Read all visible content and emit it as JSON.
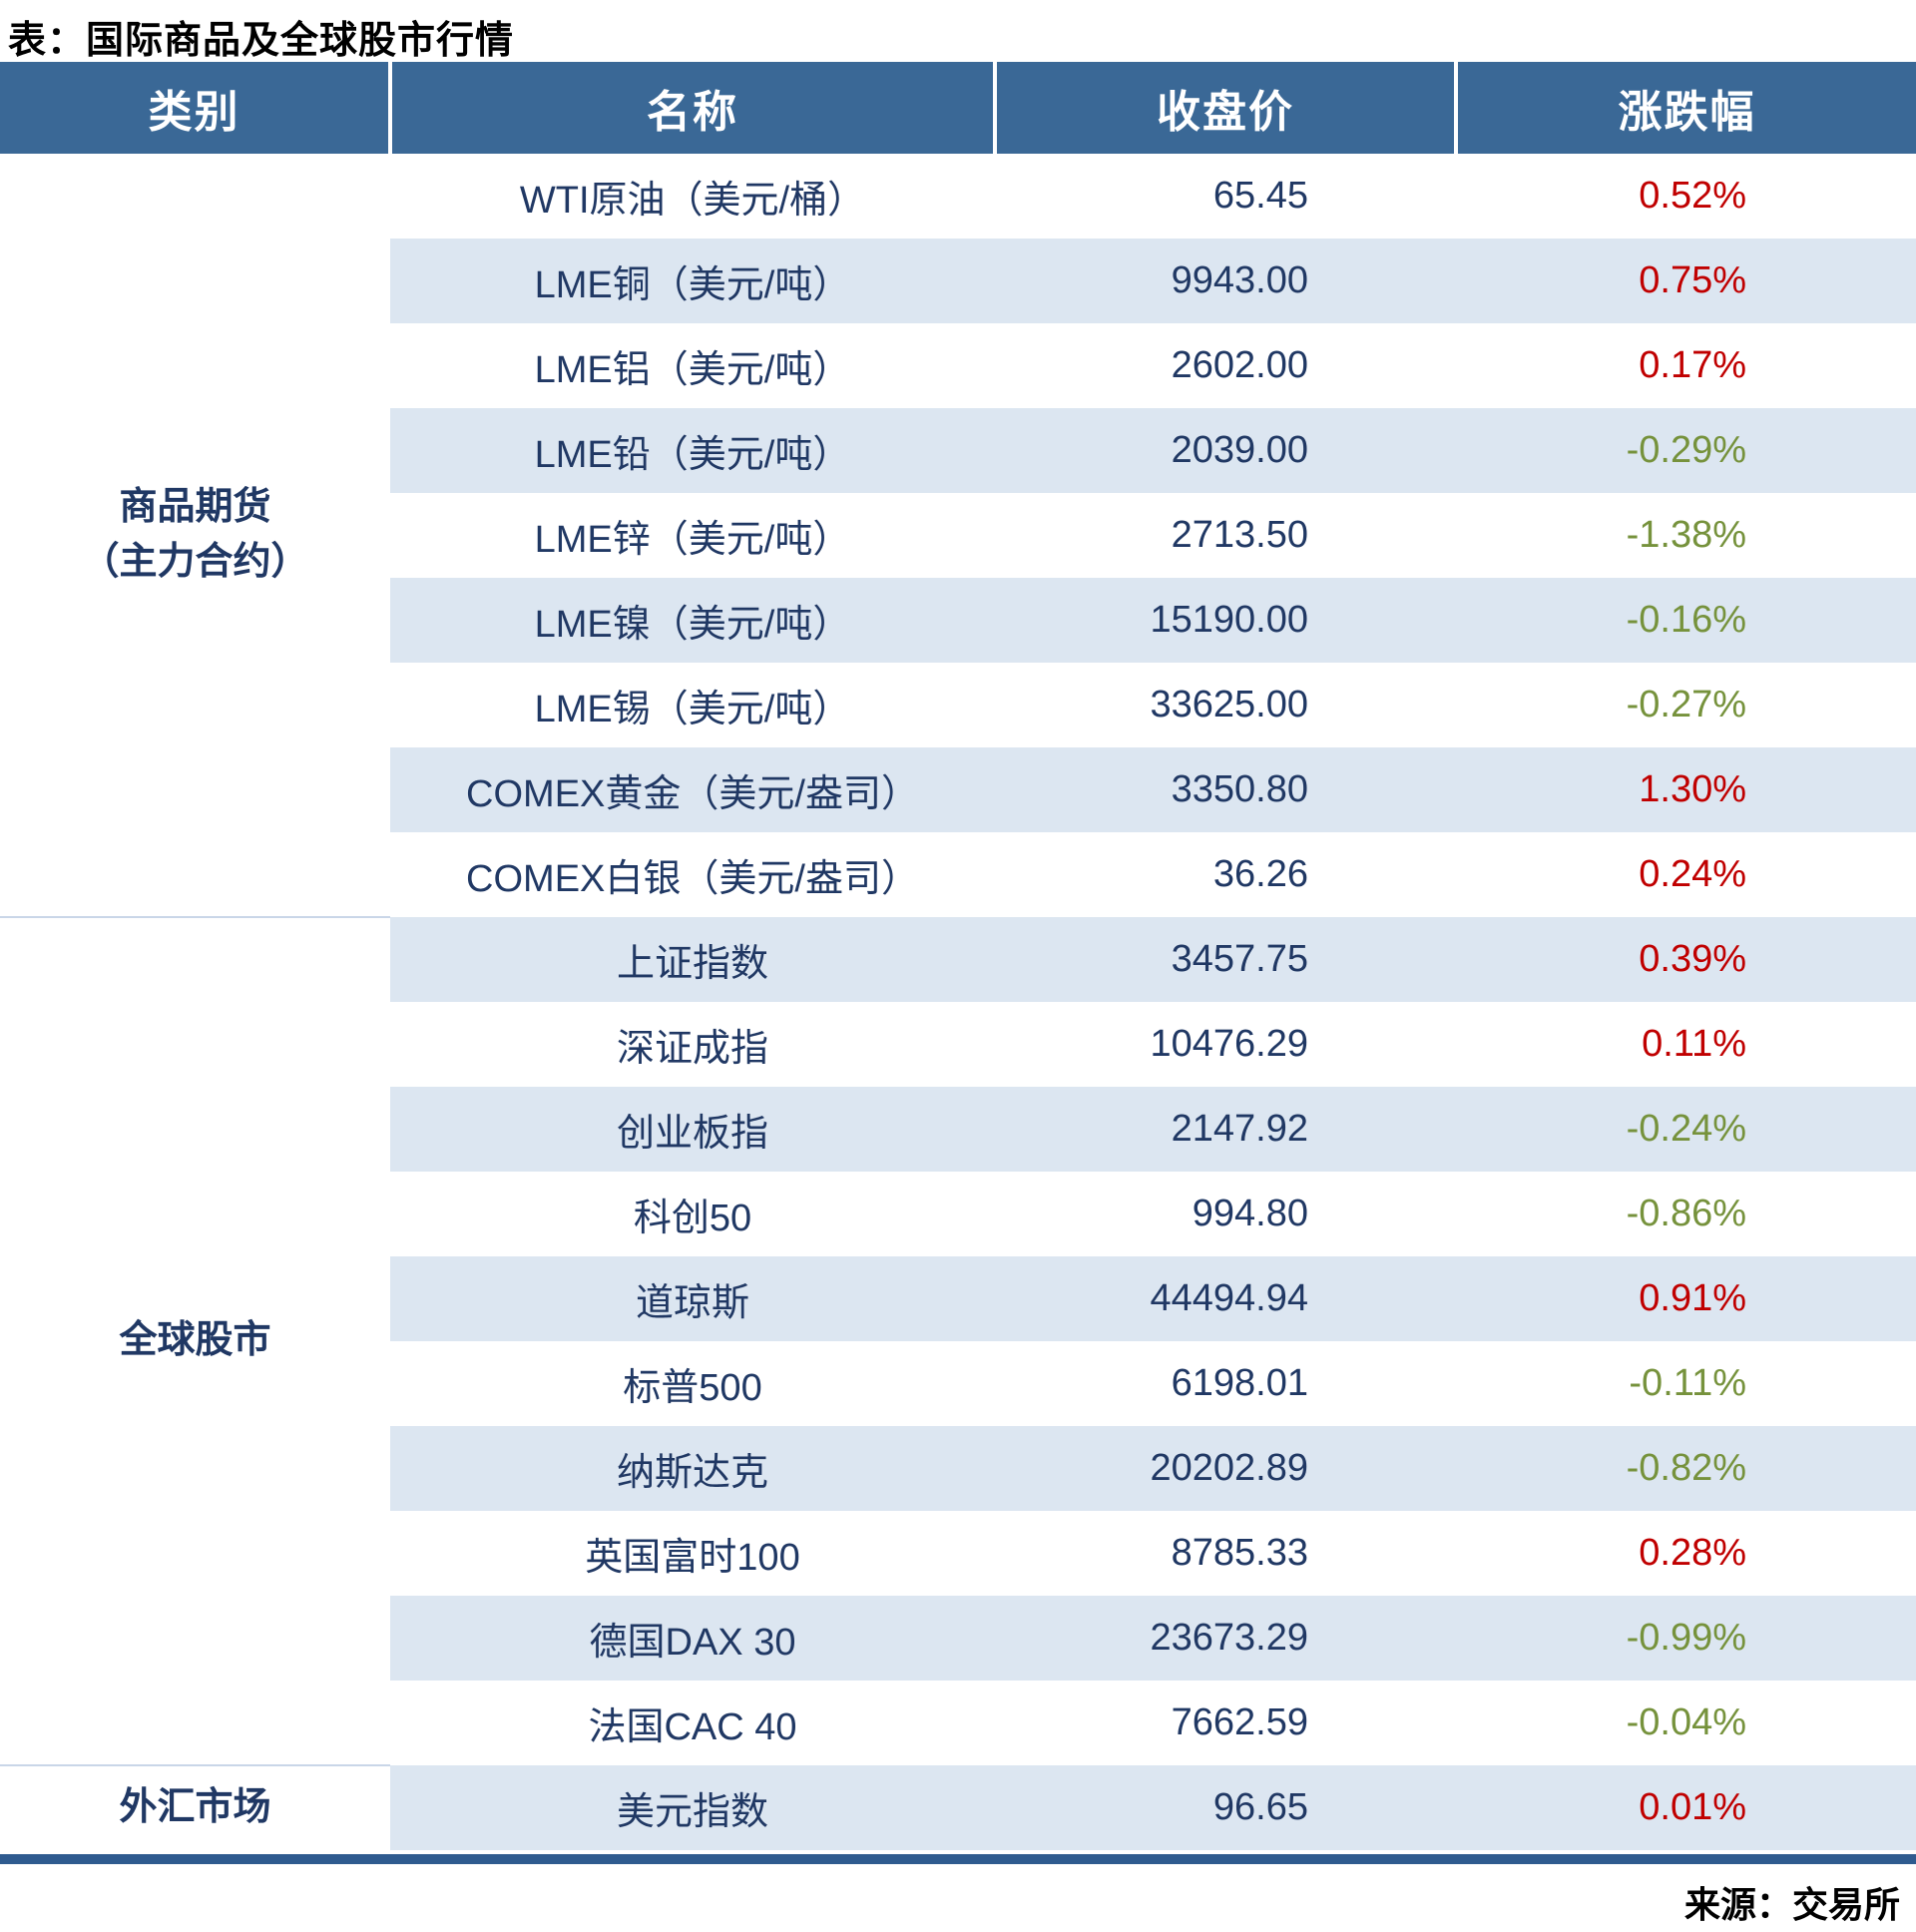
{
  "title": "表：国际商品及全球股市行情",
  "source": "来源：交易所",
  "colors": {
    "header_bg": "#3A6896",
    "stripe": "#DCE6F1",
    "positive": "#C00000",
    "negative": "#76923C",
    "text": "#203864",
    "bottom_rule": "#2F5B8F"
  },
  "chart_data": {
    "type": "table",
    "title": "国际商品及全球股市行情",
    "columns": [
      "类别",
      "名称",
      "收盘价",
      "涨跌幅"
    ],
    "groups": [
      {
        "category": "商品期货（主力合约）",
        "category_lines": [
          "商品期货",
          "（主力合约）"
        ],
        "rows": [
          [
            "WTI原油（美元/桶）",
            "65.45",
            "0.52%"
          ],
          [
            "LME铜（美元/吨）",
            "9943.00",
            "0.75%"
          ],
          [
            "LME铝（美元/吨）",
            "2602.00",
            "0.17%"
          ],
          [
            "LME铅（美元/吨）",
            "2039.00",
            "-0.29%"
          ],
          [
            "LME锌（美元/吨）",
            "2713.50",
            "-1.38%"
          ],
          [
            "LME镍（美元/吨）",
            "15190.00",
            "-0.16%"
          ],
          [
            "LME锡（美元/吨）",
            "33625.00",
            "-0.27%"
          ],
          [
            "COMEX黄金（美元/盎司）",
            "3350.80",
            "1.30%"
          ],
          [
            "COMEX白银（美元/盎司）",
            "36.26",
            "0.24%"
          ]
        ]
      },
      {
        "category": "全球股市",
        "category_lines": [
          "全球股市"
        ],
        "rows": [
          [
            "上证指数",
            "3457.75",
            "0.39%"
          ],
          [
            "深证成指",
            "10476.29",
            "0.11%"
          ],
          [
            "创业板指",
            "2147.92",
            "-0.24%"
          ],
          [
            "科创50",
            "994.80",
            "-0.86%"
          ],
          [
            "道琼斯",
            "44494.94",
            "0.91%"
          ],
          [
            "标普500",
            "6198.01",
            "-0.11%"
          ],
          [
            "纳斯达克",
            "20202.89",
            "-0.82%"
          ],
          [
            "英国富时100",
            "8785.33",
            "0.28%"
          ],
          [
            "德国DAX 30",
            "23673.29",
            "-0.99%"
          ],
          [
            "法国CAC 40",
            "7662.59",
            "-0.04%"
          ]
        ]
      },
      {
        "category": "外汇市场",
        "category_lines": [
          "外汇市场"
        ],
        "rows": [
          [
            "美元指数",
            "96.65",
            "0.01%"
          ]
        ]
      }
    ]
  }
}
